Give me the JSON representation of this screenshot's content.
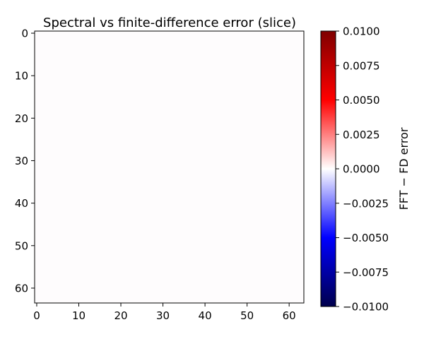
{
  "chart_data": {
    "type": "heatmap",
    "title": "Spectral vs finite-difference error (slice)",
    "xlabel": "",
    "ylabel": "",
    "grid": false,
    "x_ticks": [
      0,
      10,
      20,
      30,
      40,
      50,
      60
    ],
    "y_ticks": [
      0,
      10,
      20,
      30,
      40,
      50,
      60
    ],
    "x_range": [
      -0.5,
      63.5
    ],
    "y_range": [
      -0.5,
      63.5
    ],
    "y_axis_inverted": true,
    "grid_size": [
      64,
      64
    ],
    "values_note_level": 0.0,
    "colorbar": {
      "label": "FFT − FD error",
      "vmin": -0.01,
      "vmax": 0.01,
      "ticks": [
        "0.0100",
        "0.0075",
        "0.0050",
        "0.0025",
        "0.0000",
        "−0.0025",
        "−0.0050",
        "−0.0075",
        "−0.0100"
      ],
      "tick_values": [
        0.01,
        0.0075,
        0.005,
        0.0025,
        0.0,
        -0.0025,
        -0.005,
        -0.0075,
        -0.01
      ],
      "colormap": "seismic",
      "colors": [
        "#00004c",
        "#0000ff",
        "#ffffff",
        "#ff0000",
        "#7f0000"
      ]
    },
    "cell_color": "#fefcfd"
  }
}
